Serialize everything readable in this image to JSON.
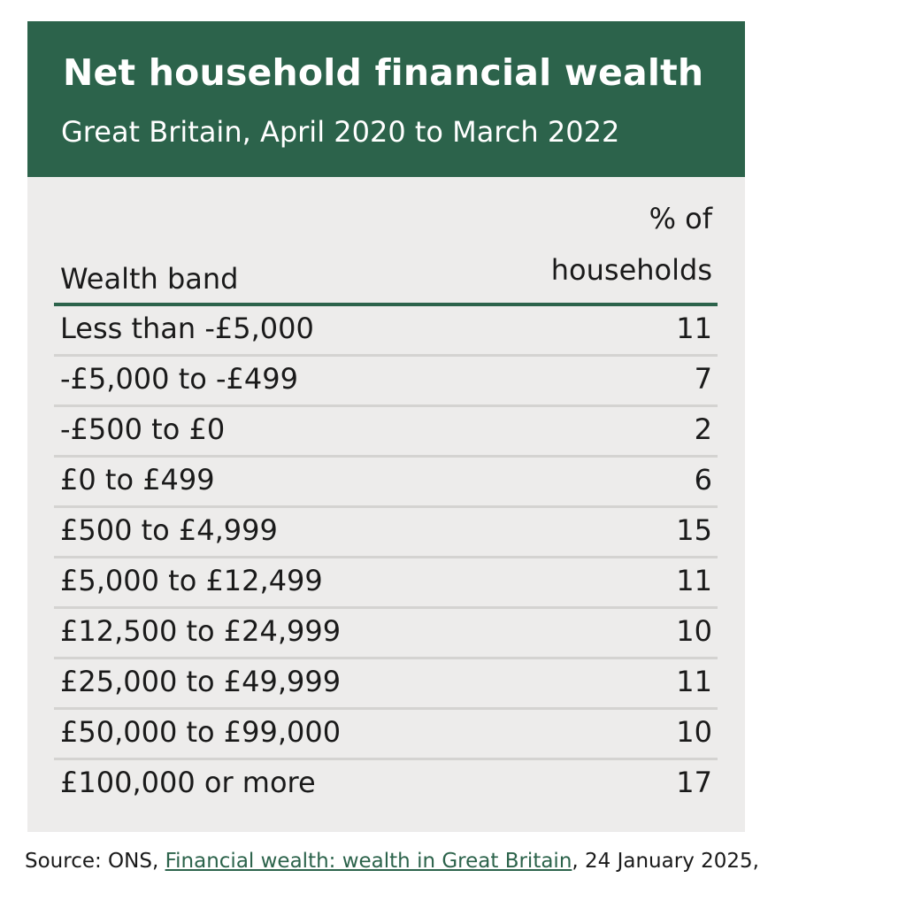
{
  "chart_data": {
    "type": "table",
    "title": "Net household financial wealth",
    "subtitle": "Great Britain, April 2020 to March 2022",
    "columns": [
      "Wealth band",
      "% of households"
    ],
    "header_right_lines": [
      "% of",
      "households"
    ],
    "rows": [
      {
        "band": "Less than -£5,000",
        "pct": "11"
      },
      {
        "band": "-£5,000 to -£499",
        "pct": "7"
      },
      {
        "band": "-£500 to £0",
        "pct": "2"
      },
      {
        "band": "£0 to £499",
        "pct": "6"
      },
      {
        "band": "£500 to £4,999",
        "pct": "15"
      },
      {
        "band": "£5,000 to £12,499",
        "pct": "11"
      },
      {
        "band": "£12,500 to £24,999",
        "pct": "10"
      },
      {
        "band": "£25,000 to £49,999",
        "pct": "11"
      },
      {
        "band": "£50,000 to £99,000",
        "pct": "10"
      },
      {
        "band": "£100,000 or more",
        "pct": "17"
      }
    ]
  },
  "source": {
    "prefix": "Source: ONS, ",
    "link_text": "Financial wealth: wealth in Great Britain",
    "suffix": ", 24 January 2025,"
  },
  "colors": {
    "header_bg": "#2c634b",
    "card_bg": "#edeceb",
    "row_divider": "#d4d3d1",
    "link": "#2c634b"
  }
}
